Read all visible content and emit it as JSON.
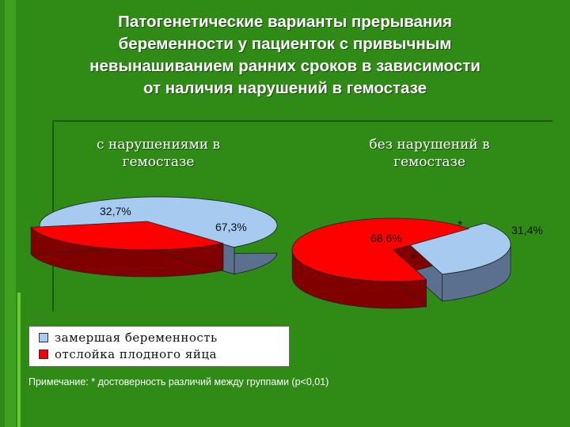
{
  "slide": {
    "title": "Патогенетические варианты прерывания беременности у пациенток с привычным невынашиванием ранних сроков в зависимости от наличия нарушений в гемостазе",
    "title_lines": [
      "Патогенетические варианты прерывания",
      "беременности у пациенток с привычным",
      "невынашиванием ранних сроков в зависимости",
      "от наличия нарушений в гемостазе"
    ],
    "note": "Примечание: * достоверность различий между группами  (р<0,01)"
  },
  "colors": {
    "background": "#2f8a16",
    "series_blue": "#a6caf0",
    "series_blue_side": "#5b708e",
    "series_red": "#ff0000",
    "series_red_side": "#800000"
  },
  "chart_data": [
    {
      "type": "pie",
      "title_lines": [
        "с нарушениями в",
        "гемостазе"
      ],
      "categories": [
        "замершая беременность",
        "отслойка плодного яйца"
      ],
      "values": [
        67.3,
        32.7
      ],
      "data_labels": [
        "67,3%",
        "32,7%"
      ],
      "markers": [],
      "legend": "bottom-left"
    },
    {
      "type": "pie",
      "title_lines": [
        "без нарушений в",
        "гемостазе"
      ],
      "categories": [
        "замершая беременность",
        "отслойка плодного яйца"
      ],
      "values": [
        31.4,
        68.6
      ],
      "data_labels": [
        "31,4%",
        "68,6%"
      ],
      "markers": [
        "*",
        "*"
      ],
      "legend": "bottom-left"
    }
  ],
  "legend": {
    "items": [
      {
        "label": "замершая беременность",
        "color": "#a6caf0"
      },
      {
        "label": "отслойка плодного яйца",
        "color": "#ff0000"
      }
    ]
  }
}
